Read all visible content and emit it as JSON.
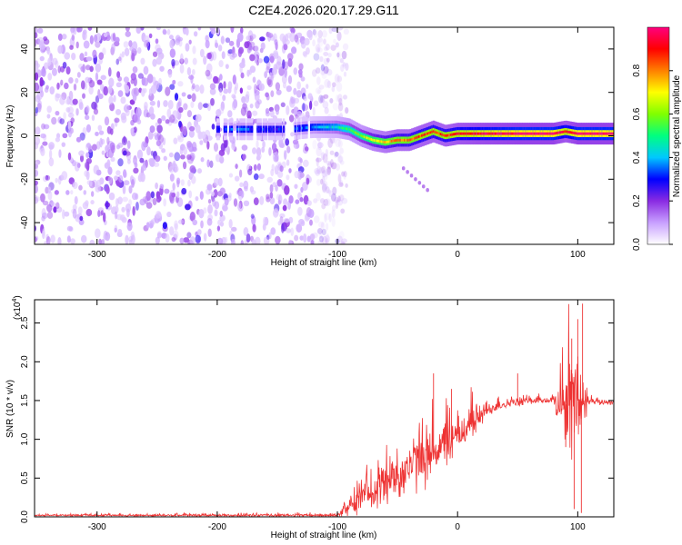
{
  "title": "C2E4.2026.020.17.29.G11",
  "chart_data": [
    {
      "type": "heatmap",
      "name": "spectrogram",
      "xlabel": "Height of straight line (km)",
      "ylabel": "Frequency (Hz)",
      "xlim": [
        -352,
        130
      ],
      "ylim": [
        -50,
        50
      ],
      "xticks": [
        -300,
        -200,
        -100,
        0,
        100
      ],
      "xtick_labels": [
        "-300",
        "-200",
        "-100",
        "0",
        "100"
      ],
      "yticks": [
        -40,
        -20,
        0,
        20,
        40
      ],
      "ytick_labels": [
        "-40",
        "-20",
        "0",
        "20",
        "40"
      ],
      "noise_region_x": [
        -352,
        -100
      ],
      "signal_trace": {
        "x": [
          -200,
          -180,
          -160,
          -140,
          -120,
          -100,
          -90,
          -80,
          -70,
          -60,
          -50,
          -40,
          -30,
          -20,
          -10,
          0,
          20,
          50,
          80,
          90,
          100,
          130
        ],
        "y": [
          3,
          3,
          3,
          3,
          4,
          4,
          3,
          0,
          -2,
          -3,
          -2,
          -2,
          0,
          2,
          0,
          1,
          1,
          1,
          1,
          2,
          1,
          1
        ],
        "amp": [
          0.3,
          0.35,
          0.3,
          0.3,
          0.35,
          0.45,
          0.55,
          0.6,
          0.7,
          0.75,
          0.8,
          0.8,
          0.85,
          0.85,
          0.85,
          0.9,
          0.95,
          1.0,
          1.0,
          0.9,
          1.0,
          1.0
        ]
      },
      "side_streak": {
        "x": [
          -45,
          -25
        ],
        "y": [
          -15,
          -25
        ]
      },
      "colorbar": {
        "label": "Normalized spectral amplitude",
        "ticks": [
          "0.0",
          "0.2",
          "0.4",
          "0.6",
          "0.8"
        ],
        "tick_values": [
          0.0,
          0.2,
          0.4,
          0.6,
          0.8
        ],
        "range": [
          0,
          1
        ],
        "stops": [
          "#ffffff",
          "#c8a0ff",
          "#8a2be2",
          "#0000ff",
          "#00c8ff",
          "#00ff80",
          "#80ff00",
          "#ffff00",
          "#ff8000",
          "#ff0000",
          "#ff007f"
        ]
      }
    },
    {
      "type": "line",
      "name": "snr",
      "color": "#ee3333",
      "xlabel": "Height of straight line (km)",
      "ylabel": "SNR (10 * v/v)",
      "scale_label": "(x10",
      "scale_exponent": "4",
      "xlim": [
        -352,
        130
      ],
      "ylim": [
        0,
        2.8
      ],
      "xticks": [
        -300,
        -200,
        -100,
        0,
        100
      ],
      "xtick_labels": [
        "-300",
        "-200",
        "-100",
        "0",
        "100"
      ],
      "yticks": [
        0,
        0.5,
        1.0,
        1.5,
        2.0,
        2.5
      ],
      "ytick_labels": [
        "0.0",
        "0.5",
        "1.0",
        "1.5",
        "2.0",
        "2.5"
      ],
      "envelope": {
        "x": [
          -352,
          -110,
          -100,
          -90,
          -80,
          -70,
          -60,
          -50,
          -40,
          -30,
          -20,
          -10,
          0,
          10,
          20,
          30,
          40,
          50,
          60,
          80,
          90,
          100,
          110,
          130
        ],
        "mean": [
          0.02,
          0.02,
          0.03,
          0.1,
          0.25,
          0.35,
          0.45,
          0.55,
          0.65,
          0.75,
          0.85,
          0.95,
          1.05,
          1.2,
          1.32,
          1.42,
          1.46,
          1.48,
          1.5,
          1.5,
          1.45,
          1.5,
          1.48,
          1.48
        ],
        "noise": [
          0.01,
          0.02,
          0.03,
          0.1,
          0.2,
          0.25,
          0.3,
          0.35,
          0.35,
          0.4,
          0.35,
          0.3,
          0.3,
          0.25,
          0.15,
          0.08,
          0.06,
          0.06,
          0.05,
          0.05,
          0.6,
          0.8,
          0.05,
          0.03
        ]
      },
      "spikes": [
        {
          "x": -20,
          "y": 1.85
        },
        {
          "x": -5,
          "y": 1.65
        },
        {
          "x": 50,
          "y": 1.85
        },
        {
          "x": 95,
          "y": 2.3
        },
        {
          "x": 100,
          "y": 2.55
        },
        {
          "x": 104,
          "y": 2.75
        },
        {
          "x": 97,
          "y": 0.1
        },
        {
          "x": 103,
          "y": 0.05
        },
        {
          "x": 90,
          "y": 0.9
        }
      ]
    }
  ]
}
